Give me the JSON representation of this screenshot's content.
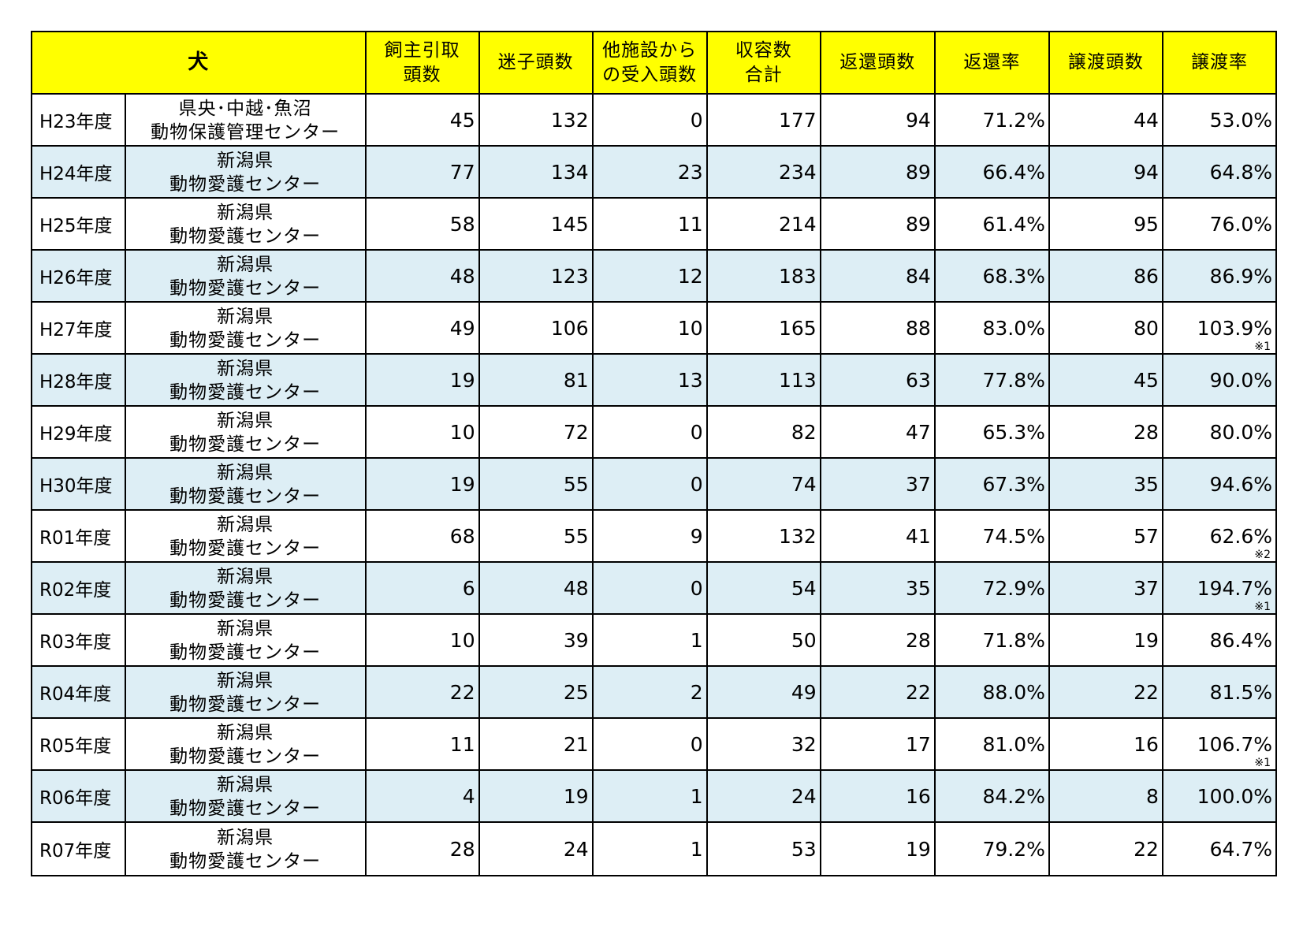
{
  "table": {
    "headers": [
      {
        "lines": [
          "犬"
        ]
      },
      {
        "lines": [
          "飼主引取",
          "頭数"
        ]
      },
      {
        "lines": [
          "迷子頭数"
        ]
      },
      {
        "lines": [
          "他施設から",
          "の受入頭数"
        ]
      },
      {
        "lines": [
          "収容数",
          "合計"
        ]
      },
      {
        "lines": [
          "返還頭数"
        ]
      },
      {
        "lines": [
          "返還率"
        ]
      },
      {
        "lines": [
          "譲渡頭数"
        ]
      },
      {
        "lines": [
          "譲渡率"
        ]
      }
    ],
    "rows": [
      {
        "year": "H23年度",
        "facility": [
          "県央･中越･魚沼",
          "動物保護管理センター"
        ],
        "owner_surrender": "45",
        "stray": "132",
        "transfer_in": "0",
        "total": "177",
        "returned": "94",
        "return_rate": "71.2%",
        "adopted": "44",
        "adoption_rate": "53.0%",
        "note": ""
      },
      {
        "year": "H24年度",
        "facility": [
          "新潟県",
          "動物愛護センター"
        ],
        "owner_surrender": "77",
        "stray": "134",
        "transfer_in": "23",
        "total": "234",
        "returned": "89",
        "return_rate": "66.4%",
        "adopted": "94",
        "adoption_rate": "64.8%",
        "note": ""
      },
      {
        "year": "H25年度",
        "facility": [
          "新潟県",
          "動物愛護センター"
        ],
        "owner_surrender": "58",
        "stray": "145",
        "transfer_in": "11",
        "total": "214",
        "returned": "89",
        "return_rate": "61.4%",
        "adopted": "95",
        "adoption_rate": "76.0%",
        "note": ""
      },
      {
        "year": "H26年度",
        "facility": [
          "新潟県",
          "動物愛護センター"
        ],
        "owner_surrender": "48",
        "stray": "123",
        "transfer_in": "12",
        "total": "183",
        "returned": "84",
        "return_rate": "68.3%",
        "adopted": "86",
        "adoption_rate": "86.9%",
        "note": ""
      },
      {
        "year": "H27年度",
        "facility": [
          "新潟県",
          "動物愛護センター"
        ],
        "owner_surrender": "49",
        "stray": "106",
        "transfer_in": "10",
        "total": "165",
        "returned": "88",
        "return_rate": "83.0%",
        "adopted": "80",
        "adoption_rate": "103.9%",
        "note": "※1"
      },
      {
        "year": "H28年度",
        "facility": [
          "新潟県",
          "動物愛護センター"
        ],
        "owner_surrender": "19",
        "stray": "81",
        "transfer_in": "13",
        "total": "113",
        "returned": "63",
        "return_rate": "77.8%",
        "adopted": "45",
        "adoption_rate": "90.0%",
        "note": ""
      },
      {
        "year": "H29年度",
        "facility": [
          "新潟県",
          "動物愛護センター"
        ],
        "owner_surrender": "10",
        "stray": "72",
        "transfer_in": "0",
        "total": "82",
        "returned": "47",
        "return_rate": "65.3%",
        "adopted": "28",
        "adoption_rate": "80.0%",
        "note": ""
      },
      {
        "year": "H30年度",
        "facility": [
          "新潟県",
          "動物愛護センター"
        ],
        "owner_surrender": "19",
        "stray": "55",
        "transfer_in": "0",
        "total": "74",
        "returned": "37",
        "return_rate": "67.3%",
        "adopted": "35",
        "adoption_rate": "94.6%",
        "note": ""
      },
      {
        "year": "R01年度",
        "facility": [
          "新潟県",
          "動物愛護センター"
        ],
        "owner_surrender": "68",
        "stray": "55",
        "transfer_in": "9",
        "total": "132",
        "returned": "41",
        "return_rate": "74.5%",
        "adopted": "57",
        "adoption_rate": "62.6%",
        "note": "※2"
      },
      {
        "year": "R02年度",
        "facility": [
          "新潟県",
          "動物愛護センター"
        ],
        "owner_surrender": "6",
        "stray": "48",
        "transfer_in": "0",
        "total": "54",
        "returned": "35",
        "return_rate": "72.9%",
        "adopted": "37",
        "adoption_rate": "194.7%",
        "note": "※1"
      },
      {
        "year": "R03年度",
        "facility": [
          "新潟県",
          "動物愛護センター"
        ],
        "owner_surrender": "10",
        "stray": "39",
        "transfer_in": "1",
        "total": "50",
        "returned": "28",
        "return_rate": "71.8%",
        "adopted": "19",
        "adoption_rate": "86.4%",
        "note": ""
      },
      {
        "year": "R04年度",
        "facility": [
          "新潟県",
          "動物愛護センター"
        ],
        "owner_surrender": "22",
        "stray": "25",
        "transfer_in": "2",
        "total": "49",
        "returned": "22",
        "return_rate": "88.0%",
        "adopted": "22",
        "adoption_rate": "81.5%",
        "note": ""
      },
      {
        "year": "R05年度",
        "facility": [
          "新潟県",
          "動物愛護センター"
        ],
        "owner_surrender": "11",
        "stray": "21",
        "transfer_in": "0",
        "total": "32",
        "returned": "17",
        "return_rate": "81.0%",
        "adopted": "16",
        "adoption_rate": "106.7%",
        "note": "※1"
      },
      {
        "year": "R06年度",
        "facility": [
          "新潟県",
          "動物愛護センター"
        ],
        "owner_surrender": "4",
        "stray": "19",
        "transfer_in": "1",
        "total": "24",
        "returned": "16",
        "return_rate": "84.2%",
        "adopted": "8",
        "adoption_rate": "100.0%",
        "note": ""
      },
      {
        "year": "R07年度",
        "facility": [
          "新潟県",
          "動物愛護センター"
        ],
        "owner_surrender": "28",
        "stray": "24",
        "transfer_in": "1",
        "total": "53",
        "returned": "19",
        "return_rate": "79.2%",
        "adopted": "22",
        "adoption_rate": "64.7%",
        "note": ""
      }
    ]
  },
  "colors": {
    "header_bg": "#ffff00",
    "alt_row_bg": "#ddeef5",
    "border": "#000000"
  }
}
